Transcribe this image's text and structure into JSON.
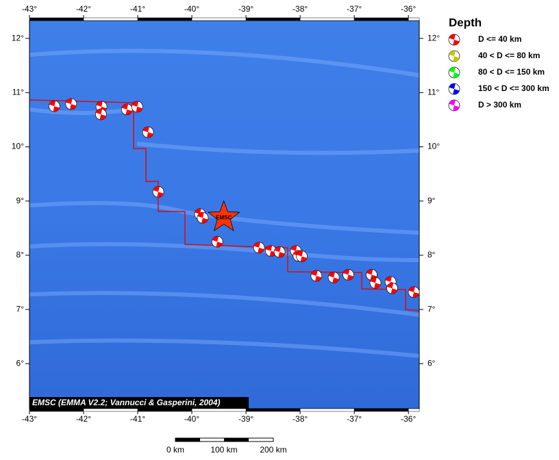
{
  "map": {
    "lon_ticks": [
      {
        "value": -43,
        "label": "-43°"
      },
      {
        "value": -42,
        "label": "-42°"
      },
      {
        "value": -41,
        "label": "-41°"
      },
      {
        "value": -40,
        "label": "-40°"
      },
      {
        "value": -39,
        "label": "-39°"
      },
      {
        "value": -38,
        "label": "-38°"
      },
      {
        "value": -37,
        "label": "-37°"
      },
      {
        "value": -36,
        "label": "-36°"
      }
    ],
    "lat_ticks": [
      {
        "value": 6,
        "label": "6°"
      },
      {
        "value": 7,
        "label": "7°"
      },
      {
        "value": 8,
        "label": "8°"
      },
      {
        "value": 9,
        "label": "9°"
      },
      {
        "value": 10,
        "label": "10°"
      },
      {
        "value": 11,
        "label": "11°"
      },
      {
        "value": 12,
        "label": "12°"
      }
    ],
    "lonlim": [
      -43,
      -35.8
    ],
    "latlim": [
      5.17,
      12.33
    ],
    "events": [
      [
        -42.54,
        10.75
      ],
      [
        -42.23,
        10.79
      ],
      [
        -41.67,
        10.74
      ],
      [
        -41.68,
        10.6
      ],
      [
        -41.2,
        10.69
      ],
      [
        -41.01,
        10.74
      ],
      [
        -40.81,
        10.27
      ],
      [
        -40.62,
        9.17
      ],
      [
        -39.85,
        8.76
      ],
      [
        -39.8,
        8.69
      ],
      [
        -39.53,
        8.25
      ],
      [
        -38.76,
        8.14
      ],
      [
        -38.54,
        8.08
      ],
      [
        -38.38,
        8.06
      ],
      [
        -38.08,
        8.08
      ],
      [
        -38.03,
        7.99
      ],
      [
        -37.97,
        7.98
      ],
      [
        -37.7,
        7.62
      ],
      [
        -37.38,
        7.59
      ],
      [
        -37.11,
        7.64
      ],
      [
        -36.68,
        7.64
      ],
      [
        -36.61,
        7.49
      ],
      [
        -36.33,
        7.51
      ],
      [
        -36.3,
        7.39
      ],
      [
        -35.9,
        7.32
      ]
    ],
    "epicenter": {
      "label": "EMSC",
      "lon": -39.41,
      "lat": 8.7
    },
    "credit": "EMSC (EMMA V2.2; Vannucci & Gasperini, 2004)",
    "scale_labels": [
      "0 km",
      "100 km",
      "200 km"
    ]
  },
  "legend": {
    "title": "Depth",
    "entries": [
      {
        "label": "D <= 40 km",
        "color": "#ff0000"
      },
      {
        "label": "40 < D <= 80 km",
        "color": "#c8c800"
      },
      {
        "label": "80 < D <= 150 km",
        "color": "#00ff00"
      },
      {
        "label": "150 < D <= 300 km",
        "color": "#0000ff"
      },
      {
        "label": "D > 300 km",
        "color": "#ff00ff"
      }
    ]
  }
}
